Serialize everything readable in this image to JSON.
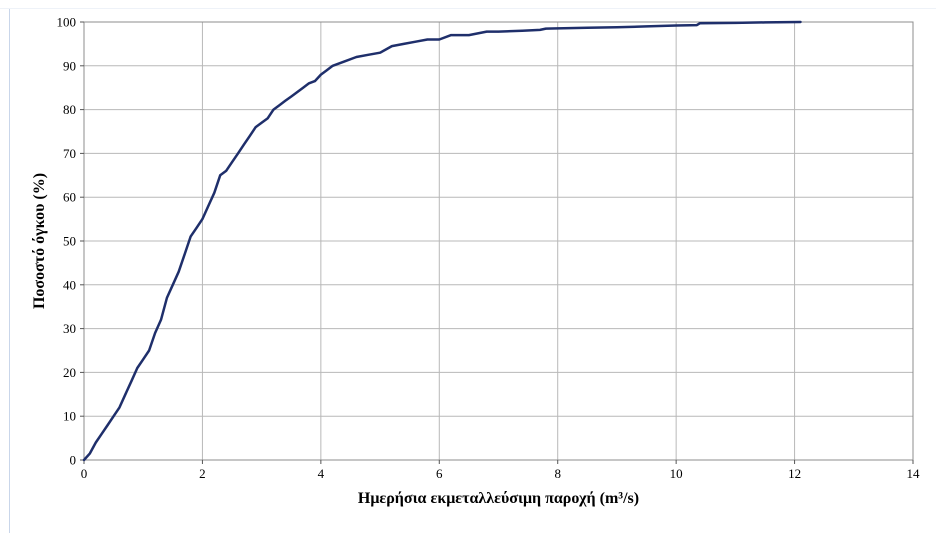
{
  "chart_data": {
    "type": "line",
    "title": "",
    "xlabel": "Ημερήσια εκμεταλλεύσιμη παροχή (m³/s)",
    "ylabel": "Ποσοστό όγκου (%)",
    "xlim": [
      0,
      14
    ],
    "ylim": [
      0,
      100
    ],
    "x_ticks": [
      "0",
      "2",
      "4",
      "6",
      "8",
      "10",
      "12",
      "14"
    ],
    "y_ticks": [
      "0",
      "10",
      "20",
      "30",
      "40",
      "50",
      "60",
      "70",
      "80",
      "90",
      "100"
    ],
    "grid": true,
    "legend": "none",
    "line_color": "#1f2f6b",
    "grid_color": "#b8b8b8",
    "series": [
      {
        "x": [
          0,
          0.1,
          0.2,
          0.3,
          0.4,
          0.5,
          0.6,
          0.7,
          0.8,
          0.9,
          1.0,
          1.1,
          1.2,
          1.3,
          1.4,
          1.5,
          1.6,
          1.7,
          1.8,
          1.9,
          2.0,
          2.1,
          2.2,
          2.3,
          2.4,
          2.5,
          2.6,
          2.7,
          2.8,
          2.9,
          3.0,
          3.1,
          3.2,
          3.3,
          3.4,
          3.5,
          3.6,
          3.7,
          3.8,
          3.9,
          4.0,
          4.1,
          4.2,
          4.4,
          4.6,
          4.8,
          5.0,
          5.2,
          5.4,
          5.6,
          5.8,
          6.0,
          6.2,
          6.5,
          6.8,
          7.0,
          7.4,
          7.7,
          7.8,
          8.5,
          9.0,
          9.5,
          10.0,
          10.35,
          10.4,
          11.0,
          11.5,
          12.1
        ],
        "y": [
          0,
          1.5,
          4,
          6,
          8,
          10,
          12,
          15,
          18,
          21,
          23,
          25,
          29,
          32,
          37,
          40,
          43,
          47,
          51,
          53,
          55,
          58,
          61,
          65,
          66,
          68,
          70,
          72,
          74,
          76,
          77,
          78,
          80,
          81,
          82,
          83,
          84,
          85,
          86,
          86.5,
          88,
          89,
          90,
          91,
          92,
          92.5,
          93,
          94.5,
          95,
          95.5,
          96,
          96,
          97,
          97,
          97.8,
          97.8,
          98,
          98.2,
          98.5,
          98.7,
          98.8,
          99,
          99.2,
          99.3,
          99.7,
          99.8,
          99.9,
          100
        ]
      }
    ]
  }
}
